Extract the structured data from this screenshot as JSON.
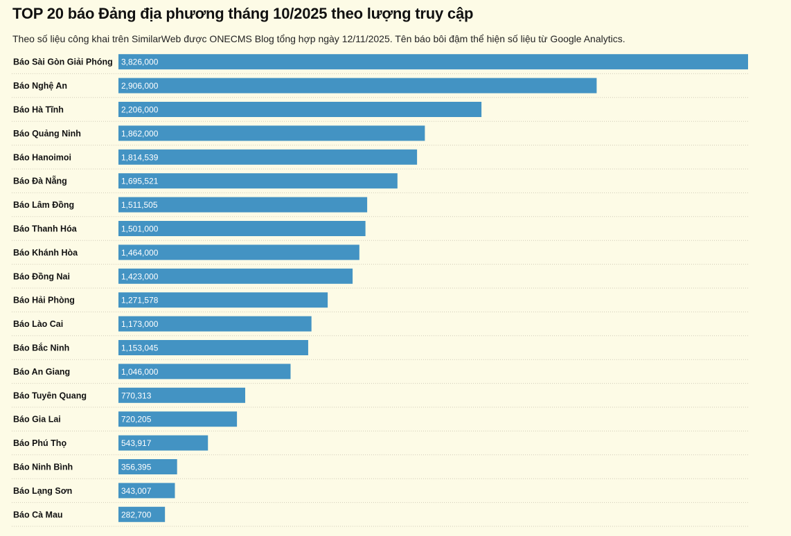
{
  "header": {
    "title": "TOP 20 báo Đảng địa phương tháng 10/2025 theo lượng truy cập",
    "subtitle": "Theo số liệu công khai trên SimilarWeb được ONECMS Blog tổng hợp ngày 12/11/2025. Tên báo bôi đậm thể hiện số liệu từ Google Analytics."
  },
  "colors": {
    "bar": "#4393c3",
    "background": "#fdfbe6",
    "separator": "#cfcab7"
  },
  "chart_data": {
    "type": "bar",
    "orientation": "horizontal",
    "title": "TOP 20 báo Đảng địa phương tháng 10/2025 theo lượng truy cập",
    "categories": [
      "Báo Sài Gòn Giải Phóng",
      "Báo Nghệ An",
      "Báo Hà Tĩnh",
      "Báo Quảng Ninh",
      "Báo Hanoimoi",
      "Báo Đà Nẵng",
      "Báo Lâm Đồng",
      "Báo Thanh Hóa",
      "Báo Khánh Hòa",
      "Báo Đồng Nai",
      "Báo Hải Phòng",
      "Báo Lào Cai",
      "Báo Bắc Ninh",
      "Báo An Giang",
      "Báo Tuyên Quang",
      "Báo Gia Lai",
      "Báo Phú Thọ",
      "Báo Ninh Bình",
      "Báo Lạng Sơn",
      "Báo Cà Mau"
    ],
    "values": [
      3826000,
      2906000,
      2206000,
      1862000,
      1814539,
      1695521,
      1511505,
      1501000,
      1464000,
      1423000,
      1271578,
      1173000,
      1153045,
      1046000,
      770313,
      720205,
      543917,
      356395,
      343007,
      282700
    ],
    "value_labels": [
      "3,826,000",
      "2,906,000",
      "2,206,000",
      "1,862,000",
      "1,814,539",
      "1,695,521",
      "1,511,505",
      "1,501,000",
      "1,464,000",
      "1,423,000",
      "1,271,578",
      "1,173,000",
      "1,153,045",
      "1,046,000",
      "770,313",
      "720,205",
      "543,917",
      "356,395",
      "343,007",
      "282,700"
    ],
    "xlim": [
      0,
      3826000
    ],
    "grid": false,
    "legend": "none"
  }
}
